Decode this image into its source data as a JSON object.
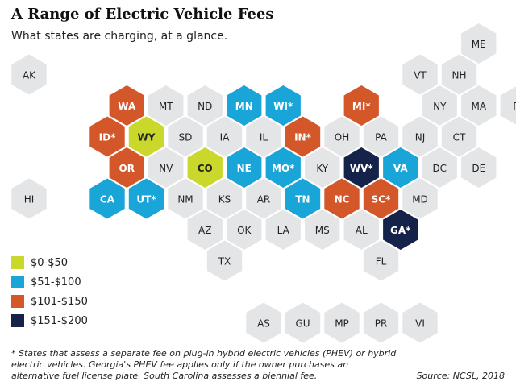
{
  "title": "A Range of Electric Vehicle Fees",
  "subtitle": "What states are charging, at a glance.",
  "colors": {
    "default": "#e4e5e6",
    "yellow": "#c9d82a",
    "blue": "#1aa5d9",
    "orange": "#d4572a",
    "navy": "#15224a"
  },
  "legend": [
    {
      "label": "$0-$50",
      "category": "yellow"
    },
    {
      "label": "$51-$100",
      "category": "blue"
    },
    {
      "label": "$101-$150",
      "category": "orange"
    },
    {
      "label": "$151-$200",
      "category": "navy"
    }
  ],
  "states": [
    {
      "abbr": "ME",
      "row": 0,
      "col": 11,
      "category": "default"
    },
    {
      "abbr": "AK",
      "row": 1,
      "col": 0,
      "category": "default"
    },
    {
      "abbr": "VT",
      "row": 1,
      "col": 10,
      "category": "default"
    },
    {
      "abbr": "NH",
      "row": 1,
      "col": 11,
      "category": "default"
    },
    {
      "abbr": "WA",
      "row": 2,
      "col": 2,
      "category": "orange"
    },
    {
      "abbr": "MT",
      "row": 2,
      "col": 3,
      "category": "default"
    },
    {
      "abbr": "ND",
      "row": 2,
      "col": 4,
      "category": "default"
    },
    {
      "abbr": "MN",
      "row": 2,
      "col": 5,
      "category": "blue"
    },
    {
      "abbr": "WI*",
      "row": 2,
      "col": 6,
      "category": "blue"
    },
    {
      "abbr": "MI*",
      "row": 2,
      "col": 8,
      "category": "orange"
    },
    {
      "abbr": "NY",
      "row": 2,
      "col": 10,
      "category": "default"
    },
    {
      "abbr": "MA",
      "row": 2,
      "col": 11,
      "category": "default"
    },
    {
      "abbr": "RI",
      "row": 2,
      "col": 12,
      "category": "default"
    },
    {
      "abbr": "ID*",
      "row": 3,
      "col": 2,
      "category": "orange"
    },
    {
      "abbr": "WY",
      "row": 3,
      "col": 3,
      "category": "yellow"
    },
    {
      "abbr": "SD",
      "row": 3,
      "col": 4,
      "category": "default"
    },
    {
      "abbr": "IA",
      "row": 3,
      "col": 5,
      "category": "default"
    },
    {
      "abbr": "IL",
      "row": 3,
      "col": 6,
      "category": "default"
    },
    {
      "abbr": "IN*",
      "row": 3,
      "col": 7,
      "category": "orange"
    },
    {
      "abbr": "OH",
      "row": 3,
      "col": 8,
      "category": "default"
    },
    {
      "abbr": "PA",
      "row": 3,
      "col": 9,
      "category": "default"
    },
    {
      "abbr": "NJ",
      "row": 3,
      "col": 10,
      "category": "default"
    },
    {
      "abbr": "CT",
      "row": 3,
      "col": 11,
      "category": "default"
    },
    {
      "abbr": "OR",
      "row": 4,
      "col": 2,
      "category": "orange"
    },
    {
      "abbr": "NV",
      "row": 4,
      "col": 3,
      "category": "default"
    },
    {
      "abbr": "CO",
      "row": 4,
      "col": 4,
      "category": "yellow"
    },
    {
      "abbr": "NE",
      "row": 4,
      "col": 5,
      "category": "blue"
    },
    {
      "abbr": "MO*",
      "row": 4,
      "col": 6,
      "category": "blue"
    },
    {
      "abbr": "KY",
      "row": 4,
      "col": 7,
      "category": "default"
    },
    {
      "abbr": "WV*",
      "row": 4,
      "col": 8,
      "category": "navy"
    },
    {
      "abbr": "VA",
      "row": 4,
      "col": 9,
      "category": "blue"
    },
    {
      "abbr": "DC",
      "row": 4,
      "col": 10,
      "category": "default"
    },
    {
      "abbr": "DE",
      "row": 4,
      "col": 11,
      "category": "default"
    },
    {
      "abbr": "HI",
      "row": 5,
      "col": 0,
      "category": "default"
    },
    {
      "abbr": "CA",
      "row": 5,
      "col": 2,
      "category": "blue"
    },
    {
      "abbr": "UT*",
      "row": 5,
      "col": 3,
      "category": "blue"
    },
    {
      "abbr": "NM",
      "row": 5,
      "col": 4,
      "category": "default"
    },
    {
      "abbr": "KS",
      "row": 5,
      "col": 5,
      "category": "default"
    },
    {
      "abbr": "AR",
      "row": 5,
      "col": 6,
      "category": "default"
    },
    {
      "abbr": "TN",
      "row": 5,
      "col": 7,
      "category": "blue"
    },
    {
      "abbr": "NC",
      "row": 5,
      "col": 8,
      "category": "orange"
    },
    {
      "abbr": "SC*",
      "row": 5,
      "col": 9,
      "category": "orange"
    },
    {
      "abbr": "MD",
      "row": 5,
      "col": 10,
      "category": "default"
    },
    {
      "abbr": "AZ",
      "row": 6,
      "col": 4,
      "category": "default"
    },
    {
      "abbr": "OK",
      "row": 6,
      "col": 5,
      "category": "default"
    },
    {
      "abbr": "LA",
      "row": 6,
      "col": 6,
      "category": "default"
    },
    {
      "abbr": "MS",
      "row": 6,
      "col": 7,
      "category": "default"
    },
    {
      "abbr": "AL",
      "row": 6,
      "col": 8,
      "category": "default"
    },
    {
      "abbr": "GA*",
      "row": 6,
      "col": 9,
      "category": "navy"
    },
    {
      "abbr": "TX",
      "row": 7,
      "col": 5,
      "category": "default"
    },
    {
      "abbr": "FL",
      "row": 7,
      "col": 9,
      "category": "default"
    },
    {
      "abbr": "AS",
      "row": 9,
      "col": 6,
      "category": "default"
    },
    {
      "abbr": "GU",
      "row": 9,
      "col": 7,
      "category": "default"
    },
    {
      "abbr": "MP",
      "row": 9,
      "col": 8,
      "category": "default"
    },
    {
      "abbr": "PR",
      "row": 9,
      "col": 9,
      "category": "default"
    },
    {
      "abbr": "VI",
      "row": 9,
      "col": 10,
      "category": "default"
    }
  ],
  "footnote": "* States that assess a separate fee on plug-in hybrid electric vehicles (PHEV) or hybrid electric vehicles. Georgia's PHEV fee applies only if the owner purchases an alternative fuel license plate. South Carolina assesses a biennial fee.",
  "source": "Source:  NCSL, 2018"
}
